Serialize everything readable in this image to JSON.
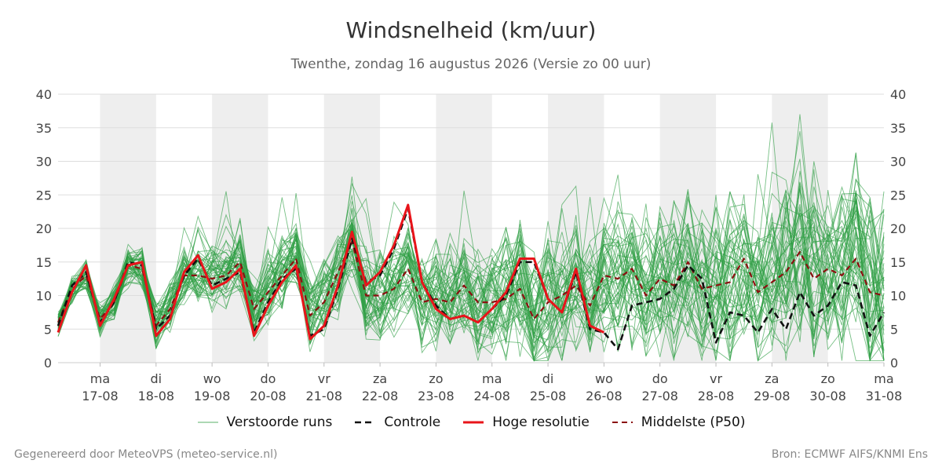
{
  "title": "Windsnelheid (km/uur)",
  "subtitle": "Twenthe, zondag 16 augustus 2026 (Versie zo 00 uur)",
  "footer": {
    "left": "Gegenereerd door MeteoVPS (meteo-service.nl)",
    "right": "Bron: ECMWF AIFS/KNMI Ens"
  },
  "colors": {
    "ensemble": "#2e9e44",
    "control": "#111111",
    "high_res": "#e8141a",
    "median": "#8b1010",
    "shade": "#eeeeee",
    "grid": "#dddddd"
  },
  "legend": [
    {
      "key": "ensemble",
      "label": "Verstoorde runs"
    },
    {
      "key": "control",
      "label": "Controle"
    },
    {
      "key": "high_res",
      "label": "Hoge resolutie"
    },
    {
      "key": "median",
      "label": "Middelste (P50)"
    }
  ],
  "chart_data": {
    "type": "line",
    "ylim": [
      0,
      40
    ],
    "yticks": [
      0,
      5,
      10,
      15,
      20,
      25,
      30,
      35,
      40
    ],
    "x_start": "2026-08-16T06:00",
    "x_end": "2026-08-31T00:00",
    "grid": true,
    "legend_position": "bottom",
    "day_ticks": [
      {
        "date": "2026-08-17",
        "weekday": "ma",
        "label": "17-08"
      },
      {
        "date": "2026-08-18",
        "weekday": "di",
        "label": "18-08"
      },
      {
        "date": "2026-08-19",
        "weekday": "wo",
        "label": "19-08"
      },
      {
        "date": "2026-08-20",
        "weekday": "do",
        "label": "20-08"
      },
      {
        "date": "2026-08-21",
        "weekday": "vr",
        "label": "21-08"
      },
      {
        "date": "2026-08-22",
        "weekday": "za",
        "label": "22-08"
      },
      {
        "date": "2026-08-23",
        "weekday": "zo",
        "label": "23-08"
      },
      {
        "date": "2026-08-24",
        "weekday": "ma",
        "label": "24-08"
      },
      {
        "date": "2026-08-25",
        "weekday": "di",
        "label": "25-08"
      },
      {
        "date": "2026-08-26",
        "weekday": "wo",
        "label": "26-08"
      },
      {
        "date": "2026-08-27",
        "weekday": "do",
        "label": "27-08"
      },
      {
        "date": "2026-08-28",
        "weekday": "vr",
        "label": "28-08"
      },
      {
        "date": "2026-08-29",
        "weekday": "za",
        "label": "29-08"
      },
      {
        "date": "2026-08-30",
        "weekday": "zo",
        "label": "30-08"
      },
      {
        "date": "2026-08-31",
        "weekday": "ma",
        "label": "31-08"
      }
    ],
    "shaded_days": [
      "2026-08-17",
      "2026-08-19",
      "2026-08-21",
      "2026-08-23",
      "2026-08-25",
      "2026-08-27",
      "2026-08-29"
    ],
    "series": [
      {
        "name": "Controle",
        "style": "control",
        "x": [
          "2026-08-16T06:00",
          "2026-08-16T12:00",
          "2026-08-16T18:00",
          "2026-08-17T00:00",
          "2026-08-17T06:00",
          "2026-08-17T12:00",
          "2026-08-17T18:00",
          "2026-08-18T00:00",
          "2026-08-18T06:00",
          "2026-08-18T12:00",
          "2026-08-18T18:00",
          "2026-08-19T00:00",
          "2026-08-19T06:00",
          "2026-08-19T12:00",
          "2026-08-19T18:00",
          "2026-08-20T00:00",
          "2026-08-20T06:00",
          "2026-08-20T12:00",
          "2026-08-20T18:00",
          "2026-08-21T00:00",
          "2026-08-21T06:00",
          "2026-08-21T12:00",
          "2026-08-21T18:00",
          "2026-08-22T00:00",
          "2026-08-22T06:00",
          "2026-08-22T12:00",
          "2026-08-22T18:00",
          "2026-08-23T00:00",
          "2026-08-23T06:00",
          "2026-08-23T12:00",
          "2026-08-23T18:00",
          "2026-08-24T00:00",
          "2026-08-24T06:00",
          "2026-08-24T12:00",
          "2026-08-24T18:00",
          "2026-08-25T00:00",
          "2026-08-25T06:00",
          "2026-08-25T12:00",
          "2026-08-25T18:00",
          "2026-08-26T00:00",
          "2026-08-26T06:00",
          "2026-08-26T12:00",
          "2026-08-26T18:00",
          "2026-08-27T00:00",
          "2026-08-27T06:00",
          "2026-08-27T12:00",
          "2026-08-27T18:00",
          "2026-08-28T00:00",
          "2026-08-28T06:00",
          "2026-08-28T12:00",
          "2026-08-28T18:00",
          "2026-08-29T00:00",
          "2026-08-29T06:00",
          "2026-08-29T12:00",
          "2026-08-29T18:00",
          "2026-08-30T00:00",
          "2026-08-30T06:00",
          "2026-08-30T12:00",
          "2026-08-30T18:00",
          "2026-08-31T00:00"
        ],
        "values": [
          5.5,
          11.5,
          13.5,
          6.0,
          9.0,
          15.0,
          14.5,
          5.0,
          7.0,
          13.0,
          15.5,
          11.5,
          12.5,
          13.5,
          4.5,
          9.0,
          12.5,
          14.0,
          4.0,
          5.0,
          11.0,
          18.5,
          12.0,
          13.0,
          17.0,
          23.0,
          12.0,
          8.5,
          6.5,
          7.0,
          6.0,
          8.0,
          10.0,
          15.0,
          15.0,
          9.5,
          7.5,
          13.5,
          5.0,
          4.5,
          2.0,
          8.5,
          9.0,
          9.5,
          11.0,
          14.5,
          12.5,
          3.0,
          7.5,
          7.0,
          4.5,
          8.0,
          5.0,
          10.5,
          7.0,
          8.5,
          12.0,
          11.5,
          4.0,
          7.5
        ]
      },
      {
        "name": "Hoge resolutie",
        "style": "high_res",
        "x": [
          "2026-08-16T06:00",
          "2026-08-16T12:00",
          "2026-08-16T18:00",
          "2026-08-17T00:00",
          "2026-08-17T06:00",
          "2026-08-17T12:00",
          "2026-08-17T18:00",
          "2026-08-18T00:00",
          "2026-08-18T06:00",
          "2026-08-18T12:00",
          "2026-08-18T18:00",
          "2026-08-19T00:00",
          "2026-08-19T06:00",
          "2026-08-19T12:00",
          "2026-08-19T18:00",
          "2026-08-20T00:00",
          "2026-08-20T06:00",
          "2026-08-20T12:00",
          "2026-08-20T18:00",
          "2026-08-21T00:00",
          "2026-08-21T06:00",
          "2026-08-21T12:00",
          "2026-08-21T18:00",
          "2026-08-22T00:00",
          "2026-08-22T06:00",
          "2026-08-22T12:00",
          "2026-08-22T18:00",
          "2026-08-23T00:00",
          "2026-08-23T06:00",
          "2026-08-23T12:00",
          "2026-08-23T18:00",
          "2026-08-24T00:00",
          "2026-08-24T06:00",
          "2026-08-24T12:00",
          "2026-08-24T18:00",
          "2026-08-25T00:00",
          "2026-08-25T06:00",
          "2026-08-25T12:00",
          "2026-08-25T18:00",
          "2026-08-26T00:00"
        ],
        "values": [
          4.5,
          10.5,
          14.5,
          5.5,
          9.5,
          14.5,
          15.0,
          4.0,
          6.5,
          13.5,
          16.0,
          11.0,
          12.0,
          14.0,
          4.0,
          8.5,
          12.0,
          14.5,
          3.5,
          5.5,
          11.5,
          19.5,
          11.5,
          13.5,
          17.5,
          23.5,
          12.0,
          8.0,
          6.5,
          7.0,
          6.0,
          8.0,
          10.5,
          15.5,
          15.5,
          9.5,
          7.5,
          14.0,
          5.5,
          4.5
        ]
      },
      {
        "name": "Middelste (P50)",
        "style": "median",
        "x": [
          "2026-08-16T06:00",
          "2026-08-16T12:00",
          "2026-08-16T18:00",
          "2026-08-17T00:00",
          "2026-08-17T06:00",
          "2026-08-17T12:00",
          "2026-08-17T18:00",
          "2026-08-18T00:00",
          "2026-08-18T06:00",
          "2026-08-18T12:00",
          "2026-08-18T18:00",
          "2026-08-19T00:00",
          "2026-08-19T06:00",
          "2026-08-19T12:00",
          "2026-08-19T18:00",
          "2026-08-20T00:00",
          "2026-08-20T06:00",
          "2026-08-20T12:00",
          "2026-08-20T18:00",
          "2026-08-21T00:00",
          "2026-08-21T06:00",
          "2026-08-21T12:00",
          "2026-08-21T18:00",
          "2026-08-22T00:00",
          "2026-08-22T06:00",
          "2026-08-22T12:00",
          "2026-08-22T18:00",
          "2026-08-23T00:00",
          "2026-08-23T06:00",
          "2026-08-23T12:00",
          "2026-08-23T18:00",
          "2026-08-24T00:00",
          "2026-08-24T06:00",
          "2026-08-24T12:00",
          "2026-08-24T18:00",
          "2026-08-25T00:00",
          "2026-08-25T06:00",
          "2026-08-25T12:00",
          "2026-08-25T18:00",
          "2026-08-26T00:00",
          "2026-08-26T06:00",
          "2026-08-26T12:00",
          "2026-08-26T18:00",
          "2026-08-27T00:00",
          "2026-08-27T06:00",
          "2026-08-27T12:00",
          "2026-08-27T18:00",
          "2026-08-28T00:00",
          "2026-08-28T06:00",
          "2026-08-28T12:00",
          "2026-08-28T18:00",
          "2026-08-29T00:00",
          "2026-08-29T06:00",
          "2026-08-29T12:00",
          "2026-08-29T18:00",
          "2026-08-30T00:00",
          "2026-08-30T06:00",
          "2026-08-30T12:00",
          "2026-08-30T18:00",
          "2026-08-31T00:00"
        ],
        "values": [
          6.0,
          11.0,
          13.0,
          6.5,
          9.0,
          14.5,
          14.0,
          5.5,
          8.0,
          13.0,
          13.0,
          12.5,
          13.0,
          15.0,
          8.0,
          10.5,
          13.0,
          15.5,
          7.0,
          9.0,
          13.5,
          18.0,
          10.0,
          10.0,
          11.0,
          14.0,
          9.0,
          9.5,
          9.0,
          11.5,
          9.0,
          9.0,
          9.5,
          11.0,
          6.5,
          9.0,
          10.0,
          11.5,
          8.5,
          13.0,
          12.5,
          14.0,
          10.0,
          12.5,
          11.5,
          15.0,
          11.0,
          11.5,
          12.0,
          15.5,
          10.5,
          12.0,
          13.5,
          16.5,
          12.5,
          14.0,
          13.0,
          15.5,
          10.5,
          10.0
        ]
      }
    ]
  }
}
